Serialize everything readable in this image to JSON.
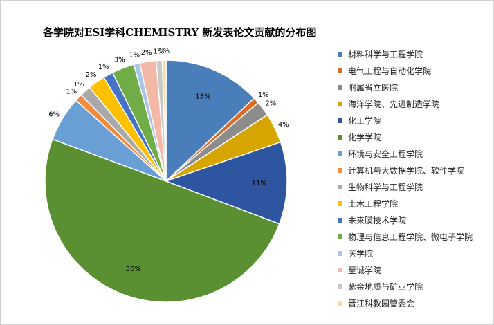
{
  "chart_data": {
    "type": "pie",
    "title": "各学院对ESI学科CHEMISTRY 新发表论文贡献的分布图",
    "legend_position": "right",
    "slices": [
      {
        "name": "材料科学与工程学院",
        "value": 13,
        "label": "13%",
        "color": "#4a7ebb"
      },
      {
        "name": "电气工程与自动化学院",
        "value": 0.8,
        "label": "1%",
        "color": "#d96a28"
      },
      {
        "name": "附属省立医院",
        "value": 2,
        "label": "2%",
        "color": "#8c8c8c"
      },
      {
        "name": "海洋学院、先进制造学院",
        "value": 4,
        "label": "4%",
        "color": "#d6a500"
      },
      {
        "name": "化工学院",
        "value": 11,
        "label": "11%",
        "color": "#2e55a0"
      },
      {
        "name": "化学学院",
        "value": 50,
        "label": "50%",
        "color": "#5a8f32"
      },
      {
        "name": "环境与安全工程学院",
        "value": 6,
        "label": "6%",
        "color": "#6a9fd6"
      },
      {
        "name": "计算机与大数据学院、软件学院",
        "value": 1,
        "label": "1%",
        "color": "#f08a3c"
      },
      {
        "name": "生物科学与工程学院",
        "value": 1.5,
        "label": "1%",
        "color": "#a9a9a9"
      },
      {
        "name": "土木工程学院",
        "value": 2.3,
        "label": "2%",
        "color": "#ffc000"
      },
      {
        "name": "未来膜技术学院",
        "value": 1.3,
        "label": "1%",
        "color": "#4472c4"
      },
      {
        "name": "物理与信息工程学院、微电子学院",
        "value": 3,
        "label": "3%",
        "color": "#70ad47"
      },
      {
        "name": "医学院",
        "value": 0.8,
        "label": "1%",
        "color": "#a9c6e8"
      },
      {
        "name": "至诚学院",
        "value": 2.2,
        "label": "2%",
        "color": "#f4b9a6"
      },
      {
        "name": "紫金地质与矿业学院",
        "value": 0.8,
        "label": "1%",
        "color": "#c9c9c9"
      },
      {
        "name": "晋江科教园管委会",
        "value": 0.5,
        "label": "1%",
        "color": "#ffd99a"
      }
    ]
  }
}
